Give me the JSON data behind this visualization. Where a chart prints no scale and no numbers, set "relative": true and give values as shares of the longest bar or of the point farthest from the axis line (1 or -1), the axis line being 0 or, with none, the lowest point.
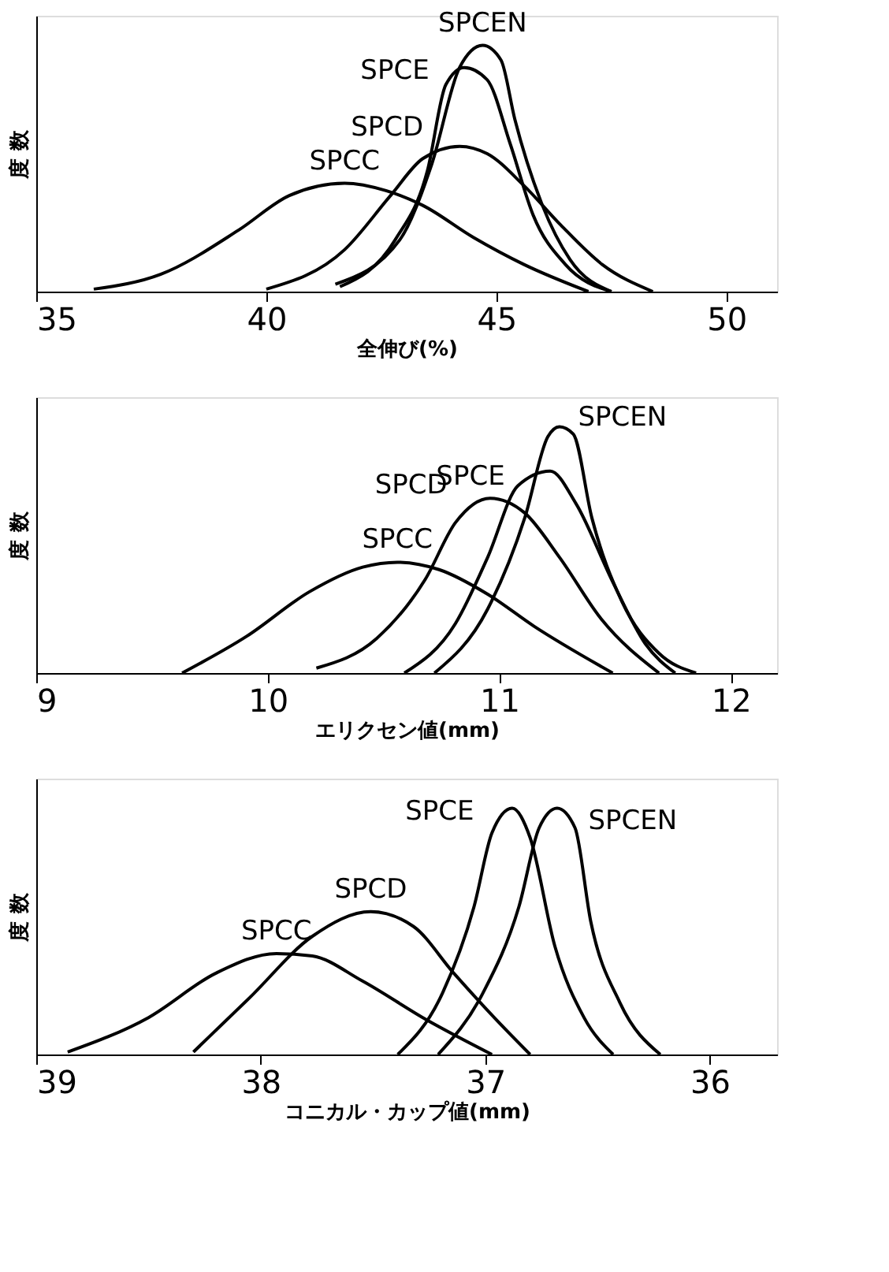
{
  "chart_data": [
    {
      "type": "line",
      "xlabel": "全伸び(%)",
      "ylabel": "度 数",
      "relative": true,
      "xlim": [
        35,
        51.1
      ],
      "xticks": [
        35,
        40,
        45,
        50
      ],
      "grid": false,
      "legend": false,
      "marker": "none",
      "line_style": "solid",
      "series": [
        {
          "name": "SPCC",
          "color": "#000000",
          "x": [
            36.25,
            37.7,
            39.4,
            40.5,
            41.7,
            42.6,
            43.4,
            44.5,
            45.6,
            47.0
          ],
          "values": [
            0.01,
            0.07,
            0.25,
            0.39,
            0.44,
            0.41,
            0.35,
            0.22,
            0.11,
            0.0
          ]
        },
        {
          "name": "SPCD",
          "color": "#000000",
          "x": [
            40.0,
            41.7,
            42.7,
            43.4,
            44.2,
            44.8,
            45.6,
            46.4,
            47.3,
            48.4
          ],
          "values": [
            0.01,
            0.17,
            0.39,
            0.54,
            0.59,
            0.56,
            0.43,
            0.27,
            0.11,
            0.0
          ]
        },
        {
          "name": "SPCE",
          "color": "#000000",
          "x": [
            41.6,
            42.8,
            43.5,
            43.9,
            44.3,
            44.8,
            45.3,
            45.8,
            46.5,
            47.5
          ],
          "values": [
            0.02,
            0.21,
            0.49,
            0.84,
            0.91,
            0.86,
            0.6,
            0.31,
            0.11,
            0.0
          ]
        },
        {
          "name": "SPCEN",
          "color": "#000000",
          "x": [
            41.5,
            42.9,
            43.6,
            44.2,
            44.7,
            45.1,
            45.4,
            46.0,
            46.6,
            47.5
          ],
          "values": [
            0.03,
            0.21,
            0.52,
            0.91,
            1.0,
            0.94,
            0.7,
            0.35,
            0.13,
            0.0
          ]
        }
      ]
    },
    {
      "type": "line",
      "xlabel": "エリクセン値(mm)",
      "ylabel": "度 数",
      "relative": true,
      "xlim": [
        9,
        12.2
      ],
      "xticks": [
        9,
        10,
        11,
        12
      ],
      "grid": false,
      "legend": false,
      "marker": "none",
      "line_style": "solid",
      "series": [
        {
          "name": "SPCC",
          "color": "#000000",
          "x": [
            9.63,
            9.91,
            10.18,
            10.41,
            10.56,
            10.74,
            10.95,
            11.15,
            11.49
          ],
          "values": [
            0.0,
            0.15,
            0.33,
            0.43,
            0.45,
            0.42,
            0.32,
            0.19,
            0.0
          ]
        },
        {
          "name": "SPCD",
          "color": "#000000",
          "x": [
            10.21,
            10.47,
            10.68,
            10.81,
            10.96,
            11.11,
            11.26,
            11.44,
            11.69
          ],
          "values": [
            0.02,
            0.14,
            0.38,
            0.61,
            0.71,
            0.65,
            0.47,
            0.22,
            0.0
          ]
        },
        {
          "name": "SPCE",
          "color": "#000000",
          "x": [
            10.59,
            10.81,
            10.95,
            11.08,
            11.22,
            11.33,
            11.49,
            11.63,
            11.76
          ],
          "values": [
            0.0,
            0.2,
            0.47,
            0.76,
            0.82,
            0.69,
            0.37,
            0.12,
            0.0
          ]
        },
        {
          "name": "SPCEN",
          "color": "#000000",
          "x": [
            10.72,
            10.95,
            11.11,
            11.21,
            11.26,
            11.32,
            11.4,
            11.53,
            11.69,
            11.85
          ],
          "values": [
            0.0,
            0.26,
            0.63,
            0.96,
            1.0,
            0.97,
            0.63,
            0.29,
            0.08,
            0.0
          ]
        }
      ]
    },
    {
      "type": "line",
      "xlabel": "コニカル・カップ値(mm)",
      "ylabel": "度 数",
      "relative": true,
      "xlim": [
        39,
        35.7
      ],
      "xticks": [
        39,
        38,
        37,
        36
      ],
      "grid": false,
      "legend": false,
      "marker": "none",
      "line_style": "solid",
      "series": [
        {
          "name": "SPCC",
          "color": "#000000",
          "x": [
            38.86,
            38.5,
            38.2,
            37.93,
            37.77,
            37.55,
            37.26,
            36.97
          ],
          "values": [
            0.01,
            0.15,
            0.33,
            0.41,
            0.4,
            0.3,
            0.14,
            0.0
          ]
        },
        {
          "name": "SPCD",
          "color": "#000000",
          "x": [
            38.3,
            38.05,
            37.77,
            37.51,
            37.32,
            37.14,
            36.96,
            36.8
          ],
          "values": [
            0.01,
            0.23,
            0.48,
            0.58,
            0.52,
            0.33,
            0.15,
            0.0
          ]
        },
        {
          "name": "SPCE",
          "color": "#000000",
          "x": [
            37.39,
            37.19,
            37.05,
            36.97,
            36.88,
            36.8,
            36.69,
            36.56,
            36.43
          ],
          "values": [
            0.0,
            0.25,
            0.6,
            0.9,
            1.0,
            0.88,
            0.44,
            0.15,
            0.0
          ]
        },
        {
          "name": "SPCEN",
          "color": "#000000",
          "x": [
            37.21,
            37.01,
            36.85,
            36.76,
            36.68,
            36.6,
            36.53,
            36.4,
            36.22
          ],
          "values": [
            0.0,
            0.25,
            0.6,
            0.92,
            1.0,
            0.92,
            0.54,
            0.21,
            0.0
          ]
        }
      ]
    }
  ]
}
